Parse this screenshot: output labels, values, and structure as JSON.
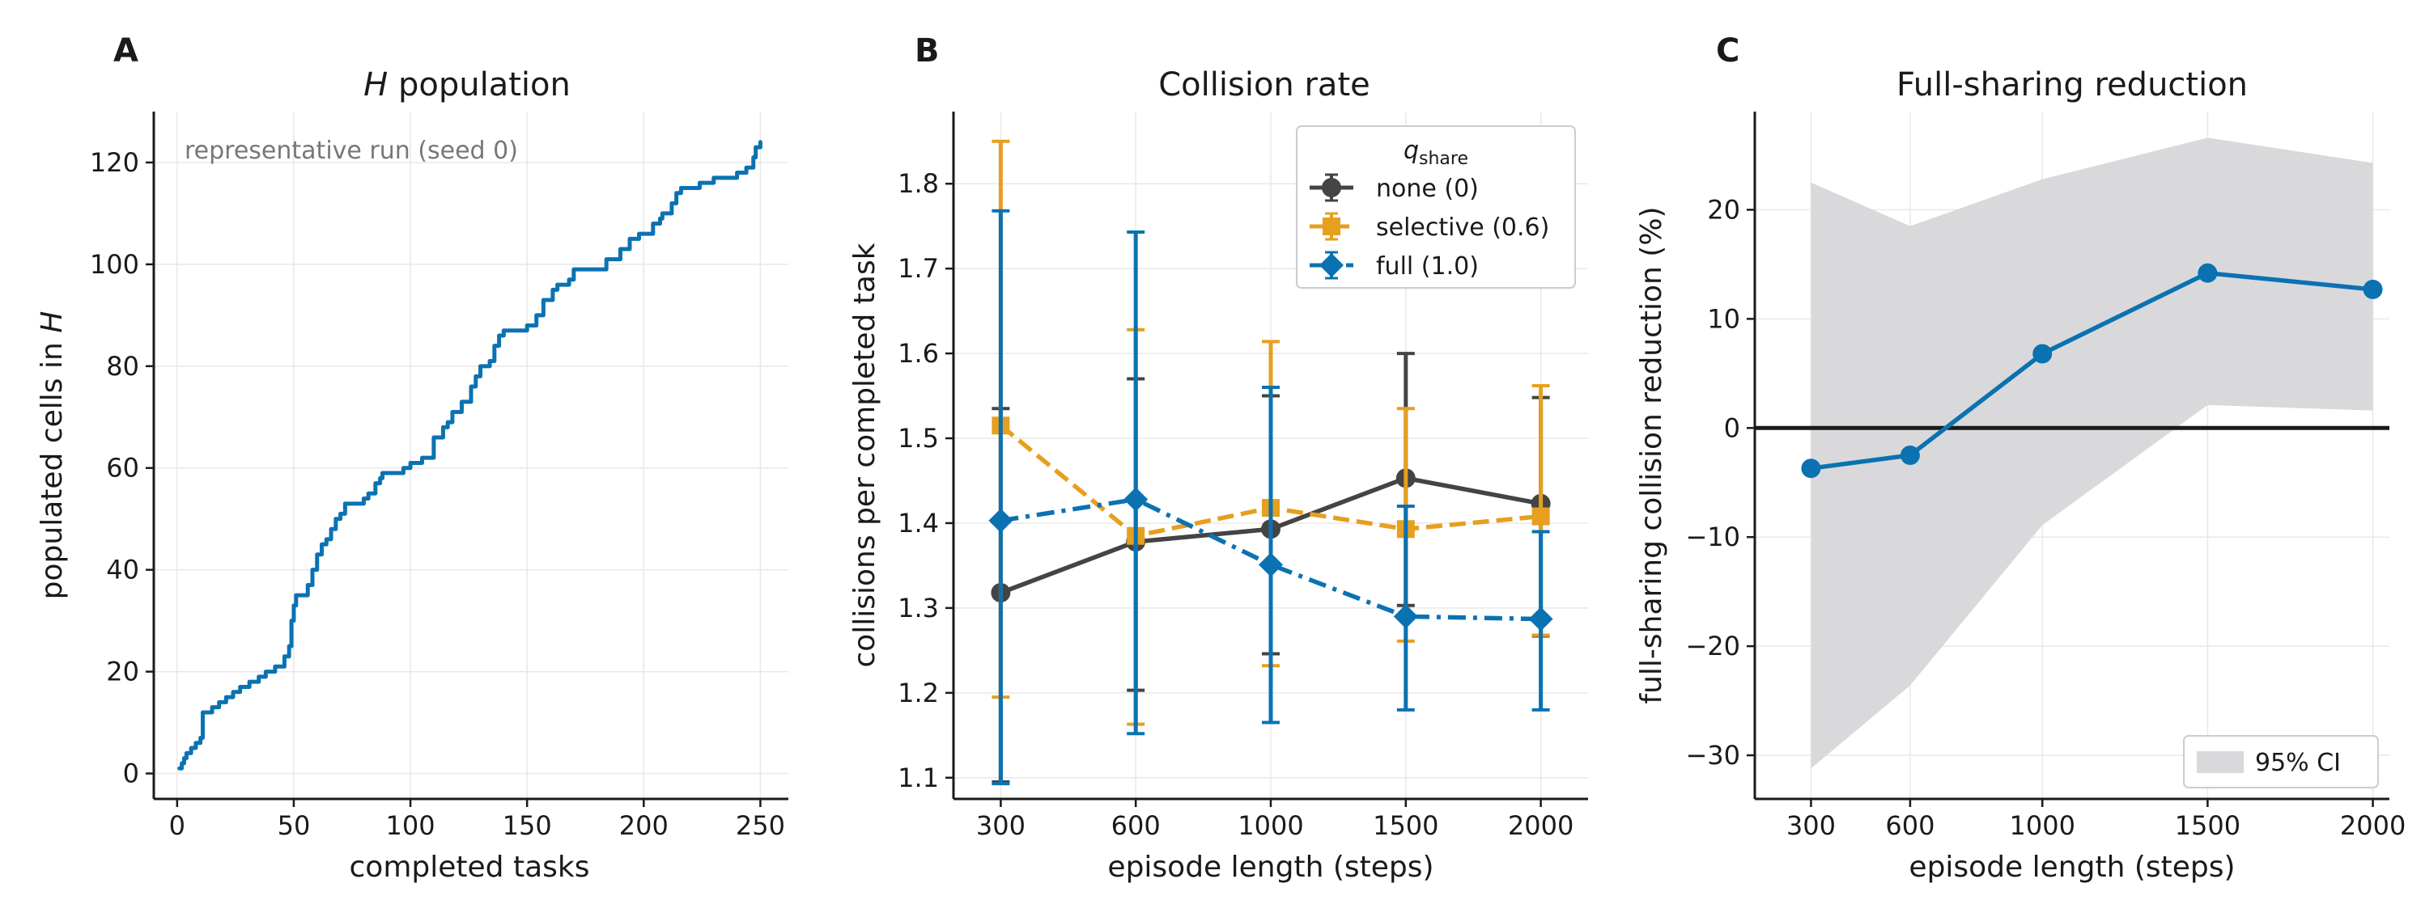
{
  "colors": {
    "none": "#444444",
    "selective": "#E69F1E",
    "full": "#0B72B2",
    "ci_fill": "#D9D9DB",
    "zero_line": "#1a1a1a",
    "annotation": "#777777",
    "grid": "#e8e8e8"
  },
  "chart_data": [
    {
      "panel": "A",
      "type": "line",
      "title": "population",
      "title_italic_symbol": "H",
      "xlabel": "completed tasks",
      "ylabel": "populated cells in",
      "ylabel_italic_symbol": "H",
      "annotation": "representative run (seed 0)",
      "xlim": [
        -10,
        262
      ],
      "ylim": [
        -5,
        130
      ],
      "xticks": [
        0,
        50,
        100,
        150,
        200,
        250
      ],
      "yticks": [
        0,
        20,
        40,
        60,
        80,
        100,
        120
      ],
      "grid": true,
      "series": [
        {
          "color_key": "full",
          "step": true,
          "points": [
            [
              1,
              1
            ],
            [
              2,
              2
            ],
            [
              3,
              3
            ],
            [
              4,
              4
            ],
            [
              6,
              5
            ],
            [
              8,
              6
            ],
            [
              10,
              7
            ],
            [
              11,
              12
            ],
            [
              15,
              13
            ],
            [
              18,
              14
            ],
            [
              21,
              15
            ],
            [
              24,
              16
            ],
            [
              27,
              17
            ],
            [
              31,
              18
            ],
            [
              35,
              19
            ],
            [
              38,
              20
            ],
            [
              42,
              21
            ],
            [
              46,
              23
            ],
            [
              48,
              25
            ],
            [
              49,
              30
            ],
            [
              50,
              33
            ],
            [
              51,
              35
            ],
            [
              56,
              37
            ],
            [
              58,
              40
            ],
            [
              60,
              43
            ],
            [
              62,
              45
            ],
            [
              64,
              46
            ],
            [
              66,
              48
            ],
            [
              68,
              50
            ],
            [
              70,
              51
            ],
            [
              72,
              53
            ],
            [
              80,
              54
            ],
            [
              82,
              55
            ],
            [
              85,
              57
            ],
            [
              87,
              58
            ],
            [
              88,
              59
            ],
            [
              97,
              60
            ],
            [
              100,
              61
            ],
            [
              105,
              62
            ],
            [
              110,
              66
            ],
            [
              114,
              68
            ],
            [
              116,
              69
            ],
            [
              118,
              71
            ],
            [
              122,
              73
            ],
            [
              126,
              76
            ],
            [
              128,
              78
            ],
            [
              130,
              80
            ],
            [
              134,
              81
            ],
            [
              136,
              84
            ],
            [
              138,
              86
            ],
            [
              140,
              87
            ],
            [
              150,
              88
            ],
            [
              154,
              90
            ],
            [
              157,
              93
            ],
            [
              161,
              95
            ],
            [
              163,
              96
            ],
            [
              168,
              97
            ],
            [
              170,
              99
            ],
            [
              184,
              101
            ],
            [
              190,
              103
            ],
            [
              194,
              105
            ],
            [
              198,
              106
            ],
            [
              204,
              108
            ],
            [
              207,
              109
            ],
            [
              208,
              110
            ],
            [
              212,
              112
            ],
            [
              214,
              114
            ],
            [
              216,
              115
            ],
            [
              224,
              116
            ],
            [
              230,
              117
            ],
            [
              237,
              117
            ],
            [
              240,
              118
            ],
            [
              244,
              119
            ],
            [
              247,
              121
            ],
            [
              248,
              123
            ],
            [
              250,
              124
            ]
          ]
        }
      ]
    },
    {
      "panel": "B",
      "type": "line",
      "title": "Collision rate",
      "xlabel": "episode length (steps)",
      "ylabel": "collisions per completed task",
      "xlim": [
        -0.35,
        4.35
      ],
      "ylim": [
        1.075,
        1.885
      ],
      "categories": [
        "300",
        "600",
        "1000",
        "1500",
        "2000"
      ],
      "yticks": [
        1.1,
        1.2,
        1.3,
        1.4,
        1.5,
        1.6,
        1.7,
        1.8
      ],
      "grid": true,
      "legend": {
        "title": "q",
        "title_subscript": "share",
        "placement": "top-right"
      },
      "series": [
        {
          "name": "none (0)",
          "color_key": "none",
          "marker": "circle",
          "dash": "solid",
          "values": [
            1.318,
            1.378,
            1.393,
            1.453,
            1.423
          ],
          "err_low": [
            1.095,
            1.203,
            1.246,
            1.303,
            1.267
          ],
          "err_high": [
            1.535,
            1.57,
            1.55,
            1.6,
            1.548
          ]
        },
        {
          "name": "selective (0.6)",
          "color_key": "selective",
          "marker": "square",
          "dash": "dashed",
          "values": [
            1.515,
            1.385,
            1.418,
            1.393,
            1.408
          ],
          "err_low": [
            1.195,
            1.163,
            1.232,
            1.261,
            1.268
          ],
          "err_high": [
            1.85,
            1.628,
            1.614,
            1.535,
            1.562
          ]
        },
        {
          "name": "full (1.0)",
          "color_key": "full",
          "marker": "diamond",
          "dash": "dashdot",
          "values": [
            1.403,
            1.428,
            1.351,
            1.29,
            1.287
          ],
          "err_low": [
            1.093,
            1.152,
            1.165,
            1.18,
            1.18
          ],
          "err_high": [
            1.768,
            1.743,
            1.56,
            1.42,
            1.39
          ]
        }
      ]
    },
    {
      "panel": "C",
      "type": "line",
      "title": "Full-sharing reduction",
      "xlabel": "episode length (steps)",
      "ylabel": "full-sharing collision reduction (%)",
      "xlim": [
        130,
        2050
      ],
      "ylim": [
        -34,
        29
      ],
      "x": [
        300,
        600,
        1000,
        1500,
        2000
      ],
      "xticks": [
        300,
        600,
        1000,
        1500,
        2000
      ],
      "yticks": [
        -30,
        -20,
        -10,
        0,
        10,
        20
      ],
      "grid": true,
      "legend": {
        "placement": "bottom-right",
        "entries": [
          "95% CI"
        ]
      },
      "series": [
        {
          "name": "full-sharing collision reduction",
          "color_key": "full",
          "marker": "circle",
          "values": [
            -3.7,
            -2.5,
            6.8,
            14.2,
            12.7
          ]
        }
      ],
      "ci": {
        "lower": [
          -31.2,
          -23.6,
          -8.9,
          2.1,
          1.6
        ],
        "upper": [
          22.5,
          18.5,
          22.8,
          26.6,
          24.3
        ]
      },
      "reference_line_y": 0
    }
  ],
  "panel_labels": [
    "A",
    "B",
    "C"
  ]
}
